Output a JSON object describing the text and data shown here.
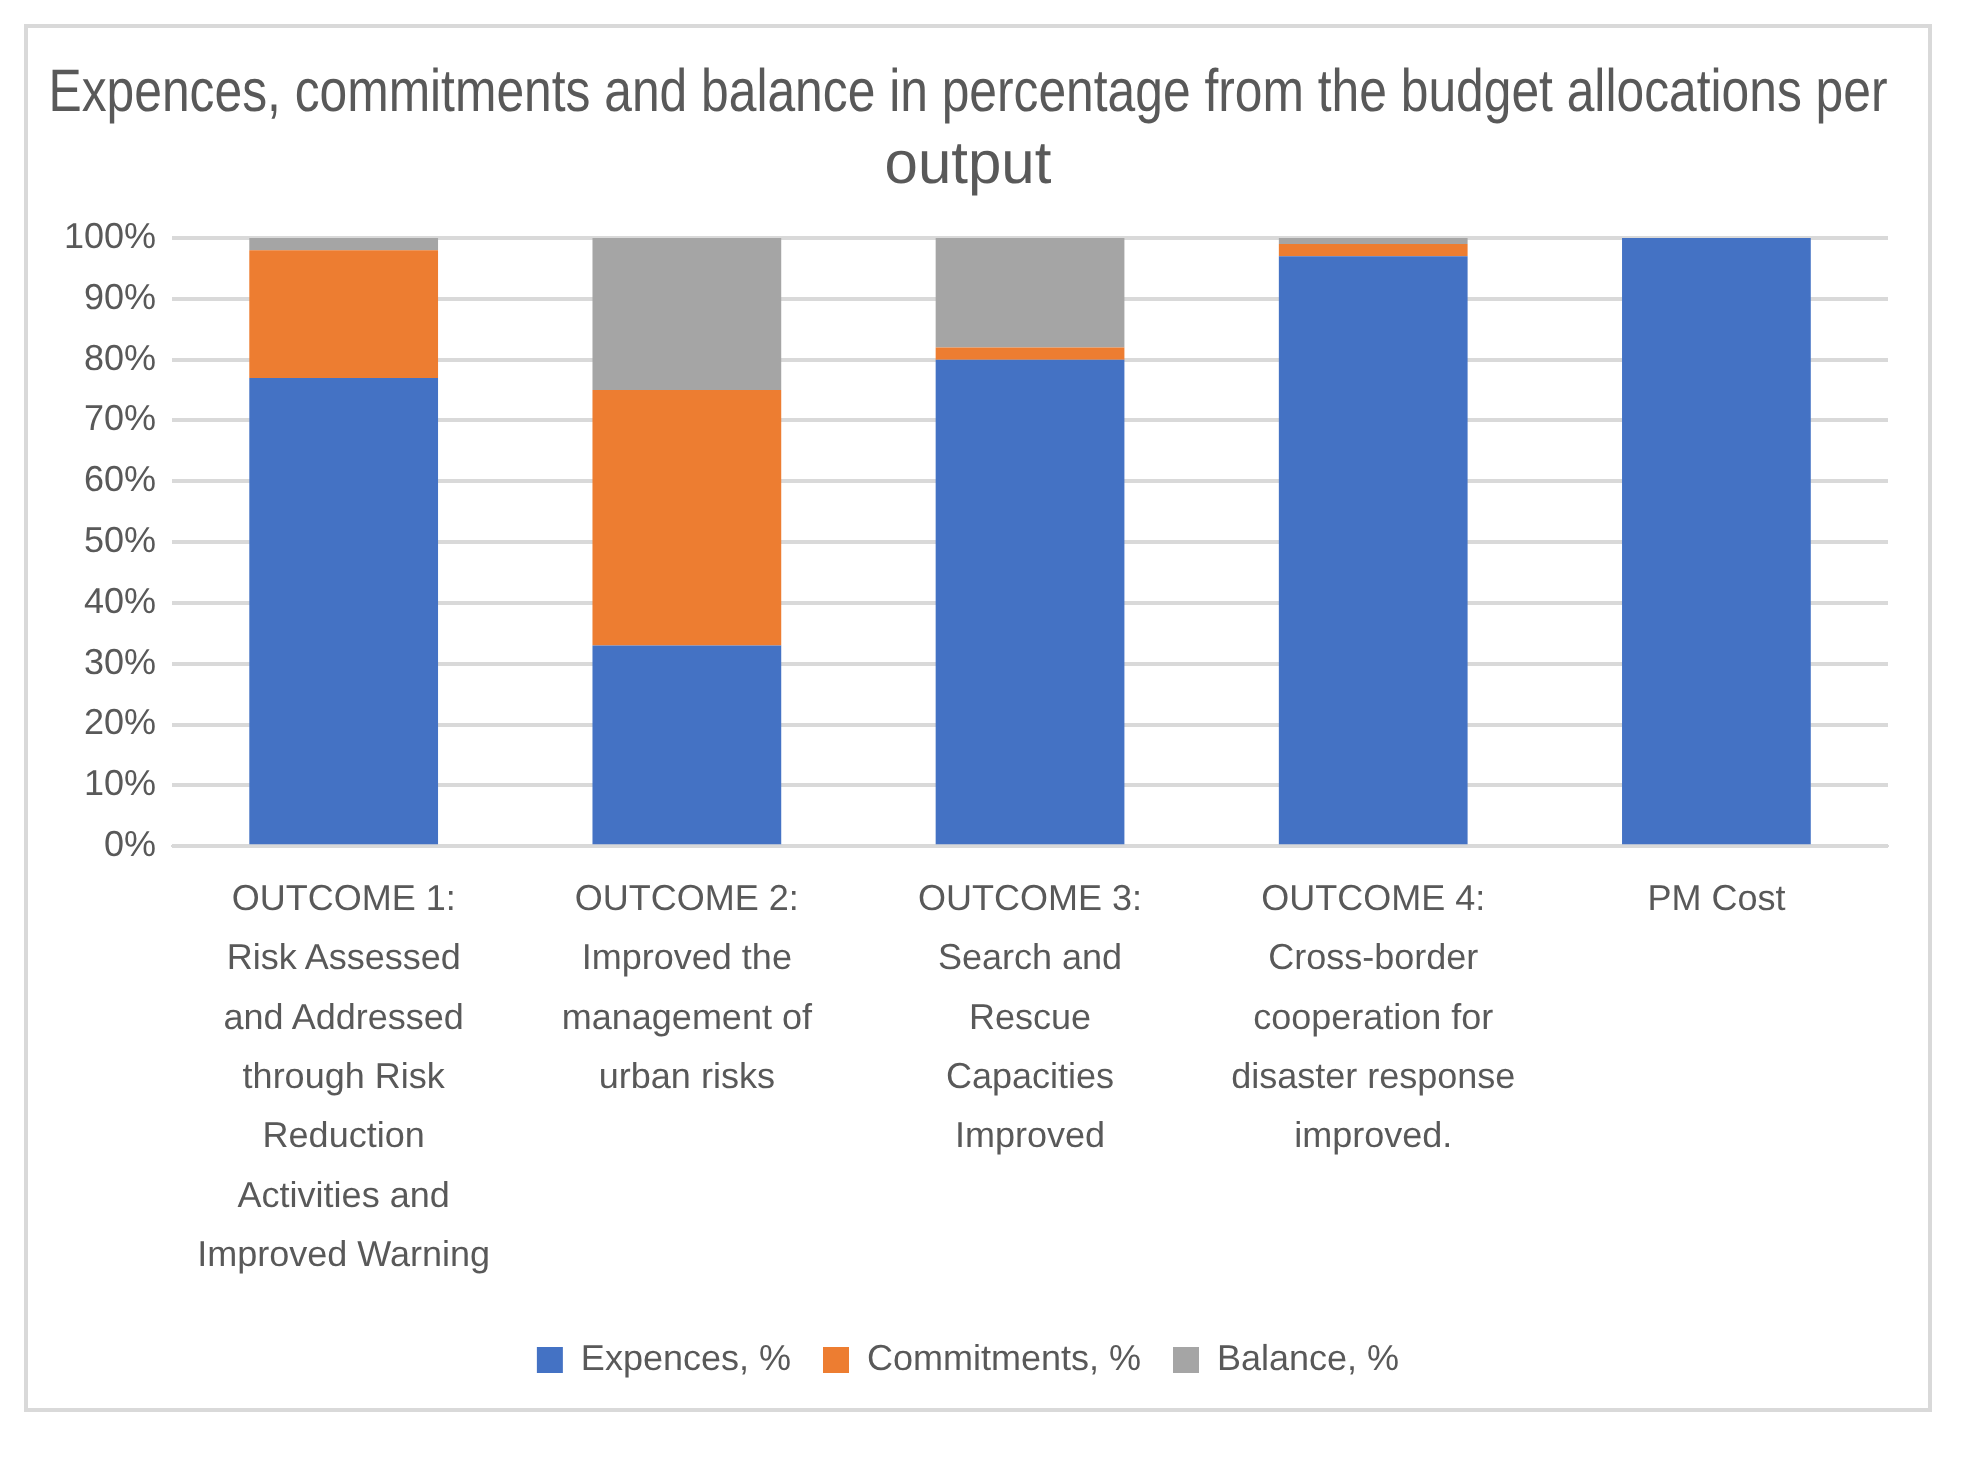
{
  "chart_data": {
    "type": "bar",
    "title": "Expences, commitments and balance in percentage from the budget allocations per output",
    "categories": [
      "OUTCOME 1: Risk Assessed and Addressed through Risk Reduction Activities and Improved Warning",
      "OUTCOME 2: Improved the management of urban risks",
      "OUTCOME 3: Search and Rescue Capacities Improved",
      "OUTCOME 4: Cross-border cooperation for disaster response improved.",
      "PM Cost"
    ],
    "series": [
      {
        "name": "Expences, %",
        "color": "#4472c4",
        "values": [
          77,
          33,
          80,
          97,
          100
        ]
      },
      {
        "name": "Commitments, %",
        "color": "#ed7d31",
        "values": [
          21,
          42,
          2,
          2,
          0
        ]
      },
      {
        "name": "Balance, %",
        "color": "#a5a5a5",
        "values": [
          2,
          25,
          18,
          1,
          0
        ]
      }
    ],
    "stacked": true,
    "ylim": [
      0,
      100
    ],
    "yticks": [
      {
        "value": 0,
        "label": "0%"
      },
      {
        "value": 10,
        "label": "10%"
      },
      {
        "value": 20,
        "label": "20%"
      },
      {
        "value": 30,
        "label": "30%"
      },
      {
        "value": 40,
        "label": "40%"
      },
      {
        "value": 50,
        "label": "50%"
      },
      {
        "value": 60,
        "label": "60%"
      },
      {
        "value": 70,
        "label": "70%"
      },
      {
        "value": 80,
        "label": "80%"
      },
      {
        "value": 90,
        "label": "90%"
      },
      {
        "value": 100,
        "label": "100%"
      }
    ],
    "grid": "y",
    "legend": "bottom"
  }
}
